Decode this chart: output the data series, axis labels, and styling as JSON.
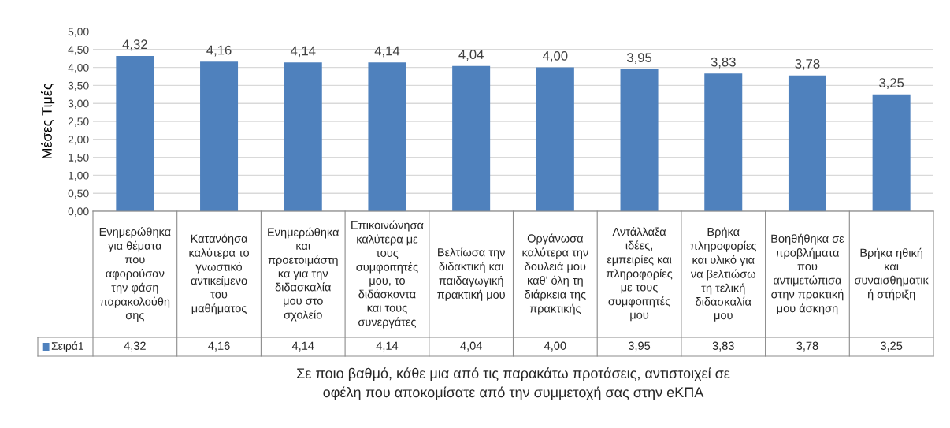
{
  "chart_data": {
    "type": "bar",
    "ylabel": "Μέσες Τιμές",
    "xlabel": "Σε ποιο βαθμό, κάθε μια από τις παρακάτω προτάσεις, αντιστοιχεί σε\nοφέλη που αποκομίσατε από την συμμετοχή σας στην eΚΠΑ",
    "categories": [
      "Ενημερώθηκα\nγια θέματα\nπου\nαφορούσαν\nτην φάση\nπαρακολούθη\nσης",
      "Κατανόησα\nκαλύτερα το\nγνωστικό\nαντικείμενο\nτου\nμαθήματος",
      "Ενημερώθηκα\nκαι\nπροετοιμάστη\nκα για την\nδιδασκαλία\nμου στο\nσχολείο",
      "Επικοινώνησα\nκαλύτερα με\nτους\nσυμφοιτητές\nμου, το\nδιδάσκοντα\nκαι τους\nσυνεργάτες",
      "Βελτίωσα την\nδιδακτική και\nπαιδαγωγική\nπρακτική μου",
      "Οργάνωσα\nκαλύτερα την\nδουλειά μου\nκαθ' όλη τη\nδιάρκεια της\nπρακτικής",
      "Αντάλλαξα\nιδέες,\nεμπειρίες και\nπληροφορίες\nμε τους\nσυμφοιτητές\nμου",
      "Βρήκα\nπληροφορίες\nκαι υλικό για\nνα βελτιώσω\nτη τελική\nδιδασκαλία\nμου",
      "Βοηθήθηκα σε\nπροβλήματα\nπου\nαντιμετώπισα\nστην πρακτική\nμου άσκηση",
      "Βρήκα ηθική\nκαι\nσυναισθηματικ\nή στήριξη"
    ],
    "series": [
      {
        "name": "Σειρά1",
        "color": "#4f81bd",
        "values": [
          4.32,
          4.16,
          4.14,
          4.14,
          4.04,
          4.0,
          3.95,
          3.83,
          3.78,
          3.25
        ],
        "value_labels": [
          "4,32",
          "4,16",
          "4,14",
          "4,14",
          "4,04",
          "4,00",
          "3,95",
          "3,83",
          "3,78",
          "3,25"
        ]
      }
    ],
    "ylim": [
      0,
      5
    ],
    "yticks": [
      {
        "value": 0,
        "label": "0,00"
      },
      {
        "value": 0.5,
        "label": "0,50"
      },
      {
        "value": 1,
        "label": "1,00"
      },
      {
        "value": 1.5,
        "label": "1,50"
      },
      {
        "value": 2,
        "label": "2,00"
      },
      {
        "value": 2.5,
        "label": "2,50"
      },
      {
        "value": 3,
        "label": "3,00"
      },
      {
        "value": 3.5,
        "label": "3,50"
      },
      {
        "value": 4,
        "label": "4,00"
      },
      {
        "value": 4.5,
        "label": "4,50"
      },
      {
        "value": 5,
        "label": "5,00"
      }
    ],
    "grid": "y"
  }
}
